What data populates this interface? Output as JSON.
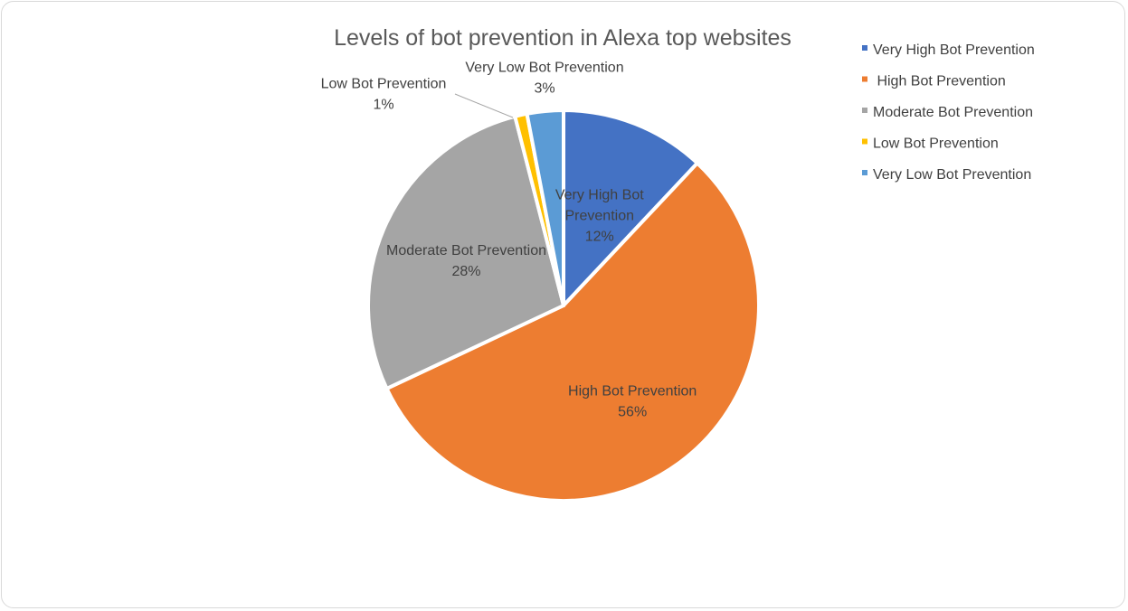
{
  "chart_data": {
    "type": "pie",
    "title": "Levels of bot prevention in Alexa top websites",
    "slices": [
      {
        "name": "Very High Bot Prevention",
        "value": 12,
        "label_line1": "Very High Bot",
        "label_line2": "Prevention",
        "label_pct": "12%",
        "color": "#4472c4"
      },
      {
        "name": "High Bot Prevention",
        "value": 56,
        "label_line1": "High Bot Prevention",
        "label_line2": "",
        "label_pct": "56%",
        "color": "#ed7d31"
      },
      {
        "name": "Moderate Bot Prevention",
        "value": 28,
        "label_line1": "Moderate Bot Prevention",
        "label_line2": "",
        "label_pct": "28%",
        "color": "#a5a5a5"
      },
      {
        "name": "Low Bot Prevention",
        "value": 1,
        "label_line1": "Low Bot Prevention",
        "label_line2": "",
        "label_pct": "1%",
        "color": "#ffc000"
      },
      {
        "name": "Very Low Bot Prevention",
        "value": 3,
        "label_line1": "Very Low Bot Prevention",
        "label_line2": "",
        "label_pct": "3%",
        "color": "#5b9bd5"
      }
    ],
    "legend": {
      "position": "top-right",
      "items": [
        "Very High Bot Prevention",
        " High Bot Prevention",
        "Moderate Bot Prevention",
        "Low Bot Prevention",
        "Very Low Bot Prevention"
      ]
    }
  }
}
